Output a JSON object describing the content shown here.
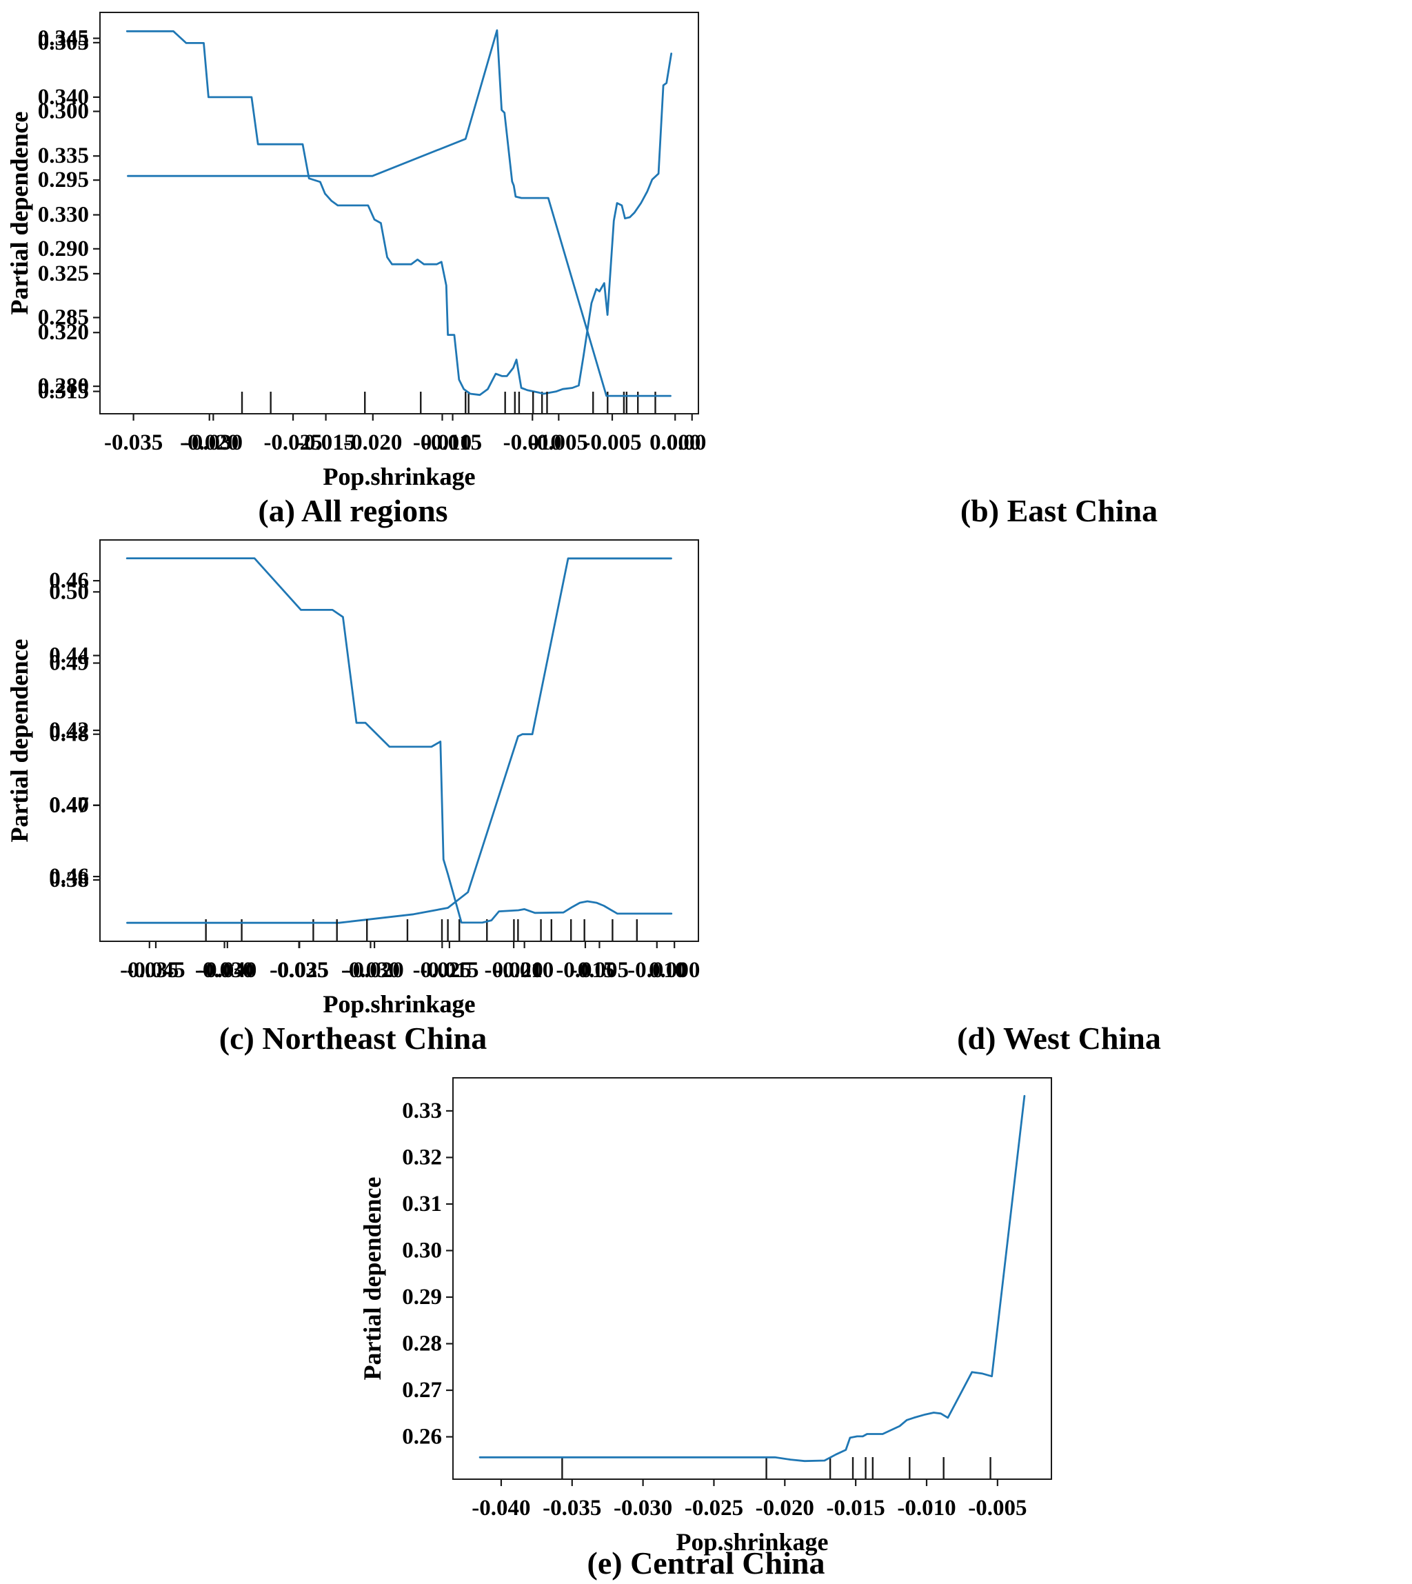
{
  "figure": {
    "background": "#ffffff",
    "line_color": "#1f77b4",
    "axis_color": "#1a1a1a",
    "x_axis_label": "Pop.shrinkage",
    "y_axis_label": "Partial dependence"
  },
  "chart_data": [
    {
      "id": "all-regions",
      "type": "line",
      "title": "(a) All regions",
      "xlabel": "Pop.shrinkage",
      "ylabel": "Partial dependence",
      "legend": "none",
      "grid": false,
      "xlim": [
        -0.0371,
        0.0004
      ],
      "ylim": [
        0.3131,
        0.3472
      ],
      "xticks": [
        -0.035,
        -0.03,
        -0.025,
        -0.02,
        -0.015,
        -0.01,
        -0.005,
        0.0
      ],
      "xtick_labels": [
        "-0.035",
        "-0.030",
        "-0.025",
        "-0.020",
        "-0.015",
        "-0.010",
        "-0.005",
        "0.000"
      ],
      "yticks": [
        0.315,
        0.32,
        0.325,
        0.33,
        0.335,
        0.34,
        0.345
      ],
      "ytick_labels": [
        "0.315",
        "0.320",
        "0.325",
        "0.330",
        "0.335",
        "0.340",
        "0.345"
      ],
      "points": [
        [
          -0.0354,
          0.3456
        ],
        [
          -0.0325,
          0.3456
        ],
        [
          -0.0317,
          0.3446
        ],
        [
          -0.0306,
          0.3446
        ],
        [
          -0.0303,
          0.34
        ],
        [
          -0.0276,
          0.34
        ],
        [
          -0.0272,
          0.336
        ],
        [
          -0.0244,
          0.336
        ],
        [
          -0.024,
          0.3331
        ],
        [
          -0.0233,
          0.3328
        ],
        [
          -0.023,
          0.3318
        ],
        [
          -0.0226,
          0.3312
        ],
        [
          -0.0222,
          0.3308
        ],
        [
          -0.0203,
          0.3308
        ],
        [
          -0.0199,
          0.3296
        ],
        [
          -0.0195,
          0.3293
        ],
        [
          -0.0191,
          0.3264
        ],
        [
          -0.0188,
          0.3258
        ],
        [
          -0.0176,
          0.3258
        ],
        [
          -0.0172,
          0.3262
        ],
        [
          -0.0168,
          0.3258
        ],
        [
          -0.016,
          0.3258
        ],
        [
          -0.0157,
          0.326
        ],
        [
          -0.0154,
          0.324
        ],
        [
          -0.0153,
          0.3198
        ],
        [
          -0.0149,
          0.3198
        ],
        [
          -0.0146,
          0.316
        ],
        [
          -0.0143,
          0.3152
        ],
        [
          -0.0139,
          0.3148
        ],
        [
          -0.0133,
          0.3147
        ],
        [
          -0.0128,
          0.3152
        ],
        [
          -0.0123,
          0.3165
        ],
        [
          -0.0119,
          0.3163
        ],
        [
          -0.0116,
          0.3163
        ],
        [
          -0.0112,
          0.317
        ],
        [
          -0.011,
          0.3177
        ],
        [
          -0.0107,
          0.3153
        ],
        [
          -0.0103,
          0.3151
        ],
        [
          -0.0096,
          0.3149
        ],
        [
          -0.0093,
          0.3148
        ],
        [
          -0.0085,
          0.315
        ],
        [
          -0.0081,
          0.3152
        ],
        [
          -0.0075,
          0.3153
        ],
        [
          -0.0071,
          0.3155
        ],
        [
          -0.0068,
          0.318
        ],
        [
          -0.0063,
          0.3225
        ],
        [
          -0.006,
          0.3237
        ],
        [
          -0.0058,
          0.3235
        ],
        [
          -0.0055,
          0.3242
        ],
        [
          -0.0053,
          0.3215
        ],
        [
          -0.0049,
          0.3295
        ],
        [
          -0.0047,
          0.331
        ],
        [
          -0.0044,
          0.3308
        ],
        [
          -0.0042,
          0.3297
        ],
        [
          -0.0039,
          0.3298
        ],
        [
          -0.0036,
          0.3302
        ],
        [
          -0.0032,
          0.331
        ],
        [
          -0.0028,
          0.332
        ],
        [
          -0.0025,
          0.333
        ],
        [
          -0.0021,
          0.3335
        ],
        [
          -0.0018,
          0.341
        ],
        [
          -0.0016,
          0.3412
        ],
        [
          -0.0013,
          0.3437
        ]
      ],
      "rug_x": [
        -0.0264,
        -0.0205,
        -0.017,
        -0.014,
        -0.0111,
        -0.0094,
        -0.0062,
        -0.0041,
        -0.0023
      ]
    },
    {
      "id": "east-china",
      "type": "line",
      "title": "(b) East China",
      "xlabel": "Pop.shrinkage",
      "ylabel": "Partial dependence",
      "legend": "none",
      "grid": false,
      "xlim": [
        -0.0247,
        0.001
      ],
      "ylim": [
        0.278,
        0.3072
      ],
      "xticks": [
        -0.02,
        -0.015,
        -0.01,
        -0.005,
        0.0
      ],
      "xtick_labels": [
        "-0.020",
        "-0.015",
        "-0.010",
        "-0.005",
        "0.000"
      ],
      "yticks": [
        0.28,
        0.285,
        0.29,
        0.295,
        0.3,
        0.305
      ],
      "ytick_labels": [
        "0.280",
        "0.285",
        "0.290",
        "0.295",
        "0.300",
        "0.305"
      ],
      "points": [
        [
          -0.0235,
          0.2953
        ],
        [
          -0.013,
          0.2953
        ],
        [
          -0.009,
          0.298
        ],
        [
          -0.00765,
          0.3059
        ],
        [
          -0.00745,
          0.3001
        ],
        [
          -0.00733,
          0.2999
        ],
        [
          -0.007,
          0.2949
        ],
        [
          -0.00693,
          0.2946
        ],
        [
          -0.00685,
          0.2938
        ],
        [
          -0.0066,
          0.2937
        ],
        [
          -0.00545,
          0.2937
        ],
        [
          -0.00295,
          0.2793
        ],
        [
          -0.0002,
          0.2793
        ]
      ],
      "rug_x": [
        -0.0186,
        -0.009,
        -0.0073,
        -0.0067,
        -0.0061,
        -0.0055,
        -0.0029,
        -0.0022,
        -0.0016
      ]
    },
    {
      "id": "northeast-china",
      "type": "line",
      "title": "(c) Northeast China",
      "xlabel": "Pop.shrinkage",
      "ylabel": "Partial dependence",
      "legend": "none",
      "grid": false,
      "xlim": [
        -0.0489,
        -0.0071
      ],
      "ylim": [
        0.4509,
        0.5073
      ],
      "xticks": [
        -0.045,
        -0.04,
        -0.035,
        -0.03,
        -0.025,
        -0.02,
        -0.015,
        -0.01
      ],
      "xtick_labels": [
        "-0.045",
        "-0.040",
        "-0.035",
        "-0.030",
        "-0.025",
        "-0.020",
        "-0.015",
        "-0.010"
      ],
      "yticks": [
        0.46,
        0.47,
        0.48,
        0.49,
        0.5
      ],
      "ytick_labels": [
        "0.46",
        "0.47",
        "0.48",
        "0.49",
        "0.50"
      ],
      "points": [
        [
          -0.047,
          0.4535
        ],
        [
          -0.0322,
          0.4535
        ],
        [
          -0.027,
          0.4547
        ],
        [
          -0.0246,
          0.4556
        ],
        [
          -0.0232,
          0.4578
        ],
        [
          -0.0197,
          0.4797
        ],
        [
          -0.0194,
          0.48
        ],
        [
          -0.0187,
          0.48
        ],
        [
          -0.0162,
          0.5047
        ],
        [
          -0.009,
          0.5047
        ]
      ],
      "rug_x": [
        -0.0415,
        -0.039,
        -0.034,
        -0.0246,
        -0.0238,
        -0.0197,
        -0.0181,
        -0.016,
        -0.0131
      ]
    },
    {
      "id": "west-china",
      "type": "line",
      "title": "(d) West China",
      "xlabel": "Pop.shrinkage",
      "ylabel": "Partial dependence",
      "legend": "none",
      "grid": false,
      "xlim": [
        -0.0383,
        0.0016
      ],
      "ylim": [
        0.3636,
        0.4709
      ],
      "xticks": [
        -0.035,
        -0.03,
        -0.025,
        -0.02,
        -0.015,
        -0.01,
        -0.005,
        0.0
      ],
      "xtick_labels": [
        "-0.035",
        "-0.030",
        "-0.025",
        "-0.020",
        "-0.015",
        "-0.010",
        "-0.005",
        "0.000"
      ],
      "yticks": [
        0.38,
        0.4,
        0.42,
        0.44,
        0.46
      ],
      "ytick_labels": [
        "0.38",
        "0.40",
        "0.42",
        "0.44",
        "0.46"
      ],
      "points": [
        [
          -0.0365,
          0.466
        ],
        [
          -0.028,
          0.466
        ],
        [
          -0.0249,
          0.4522
        ],
        [
          -0.0228,
          0.4522
        ],
        [
          -0.0221,
          0.4503
        ],
        [
          -0.0212,
          0.422
        ],
        [
          -0.0206,
          0.422
        ],
        [
          -0.019,
          0.4156
        ],
        [
          -0.0162,
          0.4156
        ],
        [
          -0.0156,
          0.417
        ],
        [
          -0.0154,
          0.3855
        ],
        [
          -0.0151,
          0.3815
        ],
        [
          -0.0142,
          0.3686
        ],
        [
          -0.0128,
          0.3686
        ],
        [
          -0.0122,
          0.3692
        ],
        [
          -0.0117,
          0.3716
        ],
        [
          -0.0104,
          0.3719
        ],
        [
          -0.01,
          0.3722
        ],
        [
          -0.0093,
          0.3712
        ],
        [
          -0.0074,
          0.3713
        ],
        [
          -0.0068,
          0.3728
        ],
        [
          -0.0063,
          0.3739
        ],
        [
          -0.0058,
          0.3743
        ],
        [
          -0.0052,
          0.3739
        ],
        [
          -0.0047,
          0.3731
        ],
        [
          -0.0038,
          0.371
        ],
        [
          -0.0002,
          0.371
        ]
      ],
      "rug_x": [
        -0.0225,
        -0.0205,
        -0.0178,
        -0.0155,
        -0.0125,
        -0.0107,
        -0.0082,
        -0.006,
        -0.0025
      ]
    },
    {
      "id": "central-china",
      "type": "line",
      "title": "(e) Central China",
      "xlabel": "Pop.shrinkage",
      "ylabel": "Partial dependence",
      "legend": "none",
      "grid": false,
      "xlim": [
        -0.0434,
        -0.0012
      ],
      "ylim": [
        0.2509,
        0.3371
      ],
      "xticks": [
        -0.04,
        -0.035,
        -0.03,
        -0.025,
        -0.02,
        -0.015,
        -0.01,
        -0.005
      ],
      "xtick_labels": [
        "-0.040",
        "-0.035",
        "-0.030",
        "-0.025",
        "-0.020",
        "-0.015",
        "-0.010",
        "-0.005"
      ],
      "yticks": [
        0.26,
        0.27,
        0.28,
        0.29,
        0.3,
        0.31,
        0.32,
        0.33
      ],
      "ytick_labels": [
        "0.26",
        "0.27",
        "0.28",
        "0.29",
        "0.30",
        "0.31",
        "0.32",
        "0.33"
      ],
      "points": [
        [
          -0.0415,
          0.2556
        ],
        [
          -0.0207,
          0.2556
        ],
        [
          -0.0196,
          0.2551
        ],
        [
          -0.0186,
          0.2548
        ],
        [
          -0.0172,
          0.2549
        ],
        [
          -0.0164,
          0.2562
        ],
        [
          -0.0157,
          0.2572
        ],
        [
          -0.0154,
          0.2598
        ],
        [
          -0.0149,
          0.2601
        ],
        [
          -0.0145,
          0.2601
        ],
        [
          -0.0142,
          0.2606
        ],
        [
          -0.0131,
          0.2606
        ],
        [
          -0.0119,
          0.2623
        ],
        [
          -0.0114,
          0.2636
        ],
        [
          -0.0109,
          0.2641
        ],
        [
          -0.0101,
          0.2648
        ],
        [
          -0.0095,
          0.2652
        ],
        [
          -0.009,
          0.265
        ],
        [
          -0.0085,
          0.2641
        ],
        [
          -0.0068,
          0.2739
        ],
        [
          -0.0061,
          0.2736
        ],
        [
          -0.0054,
          0.273
        ],
        [
          -0.0031,
          0.3332
        ]
      ],
      "rug_x": [
        -0.0357,
        -0.0213,
        -0.0168,
        -0.0152,
        -0.0143,
        -0.0138,
        -0.0112,
        -0.0088,
        -0.0055
      ]
    }
  ]
}
